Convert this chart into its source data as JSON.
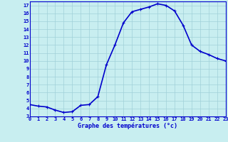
{
  "hours": [
    0,
    1,
    2,
    3,
    4,
    5,
    6,
    7,
    8,
    9,
    10,
    11,
    12,
    13,
    14,
    15,
    16,
    17,
    18,
    19,
    20,
    21,
    22,
    23
  ],
  "temps": [
    4.5,
    4.3,
    4.2,
    3.8,
    3.5,
    3.6,
    4.4,
    4.5,
    5.5,
    9.5,
    12.0,
    14.8,
    16.2,
    16.5,
    16.8,
    17.2,
    17.0,
    16.3,
    14.5,
    12.0,
    11.2,
    10.8,
    10.3,
    10.0
  ],
  "line_color": "#0000cc",
  "marker_color": "#0000cc",
  "bg_color": "#c8eef0",
  "grid_color": "#a0d0d8",
  "xlabel": "Graphe des températures (°c)",
  "xlim": [
    0,
    23
  ],
  "ylim": [
    3,
    17.5
  ],
  "yticks": [
    3,
    4,
    5,
    6,
    7,
    8,
    9,
    10,
    11,
    12,
    13,
    14,
    15,
    16,
    17
  ],
  "xticks": [
    0,
    1,
    2,
    3,
    4,
    5,
    6,
    7,
    8,
    9,
    10,
    11,
    12,
    13,
    14,
    15,
    16,
    17,
    18,
    19,
    20,
    21,
    22,
    23
  ],
  "xtick_labels": [
    "0",
    "1",
    "2",
    "3",
    "4",
    "5",
    "6",
    "7",
    "8",
    "9",
    "10",
    "11",
    "12",
    "13",
    "14",
    "15",
    "16",
    "17",
    "18",
    "19",
    "20",
    "21",
    "22",
    "23"
  ],
  "label_color": "#0000cc",
  "tick_color": "#0000cc",
  "line_width": 1.2,
  "marker_size": 3,
  "tick_fontsize": 5.0,
  "xlabel_fontsize": 6.0
}
